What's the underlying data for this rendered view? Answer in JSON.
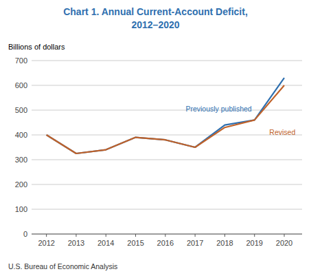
{
  "chart_data": {
    "type": "line",
    "title": "Chart 1. Annual Current-Account Deficit,",
    "subtitle": "2012–2020",
    "title_color": "#2e6faf",
    "y_label": "Billions of dollars",
    "source": "U.S. Bureau of Economic Analysis",
    "x": [
      2012,
      2013,
      2014,
      2015,
      2016,
      2017,
      2018,
      2019,
      2020
    ],
    "series": [
      {
        "name": "Previously published",
        "color": "#2e6faf",
        "values": [
          400,
          325,
          340,
          390,
          380,
          350,
          440,
          460,
          630
        ]
      },
      {
        "name": "Revised",
        "color": "#c0622a",
        "values": [
          400,
          325,
          340,
          390,
          380,
          350,
          430,
          460,
          600
        ]
      }
    ],
    "xlim": [
      2011.5,
      2020.6
    ],
    "xticks": [
      2012,
      2013,
      2014,
      2015,
      2016,
      2017,
      2018,
      2019,
      2020
    ],
    "ylim": [
      0,
      700
    ],
    "yticks": [
      0,
      100,
      200,
      300,
      400,
      500,
      600,
      700
    ],
    "grid": true
  }
}
